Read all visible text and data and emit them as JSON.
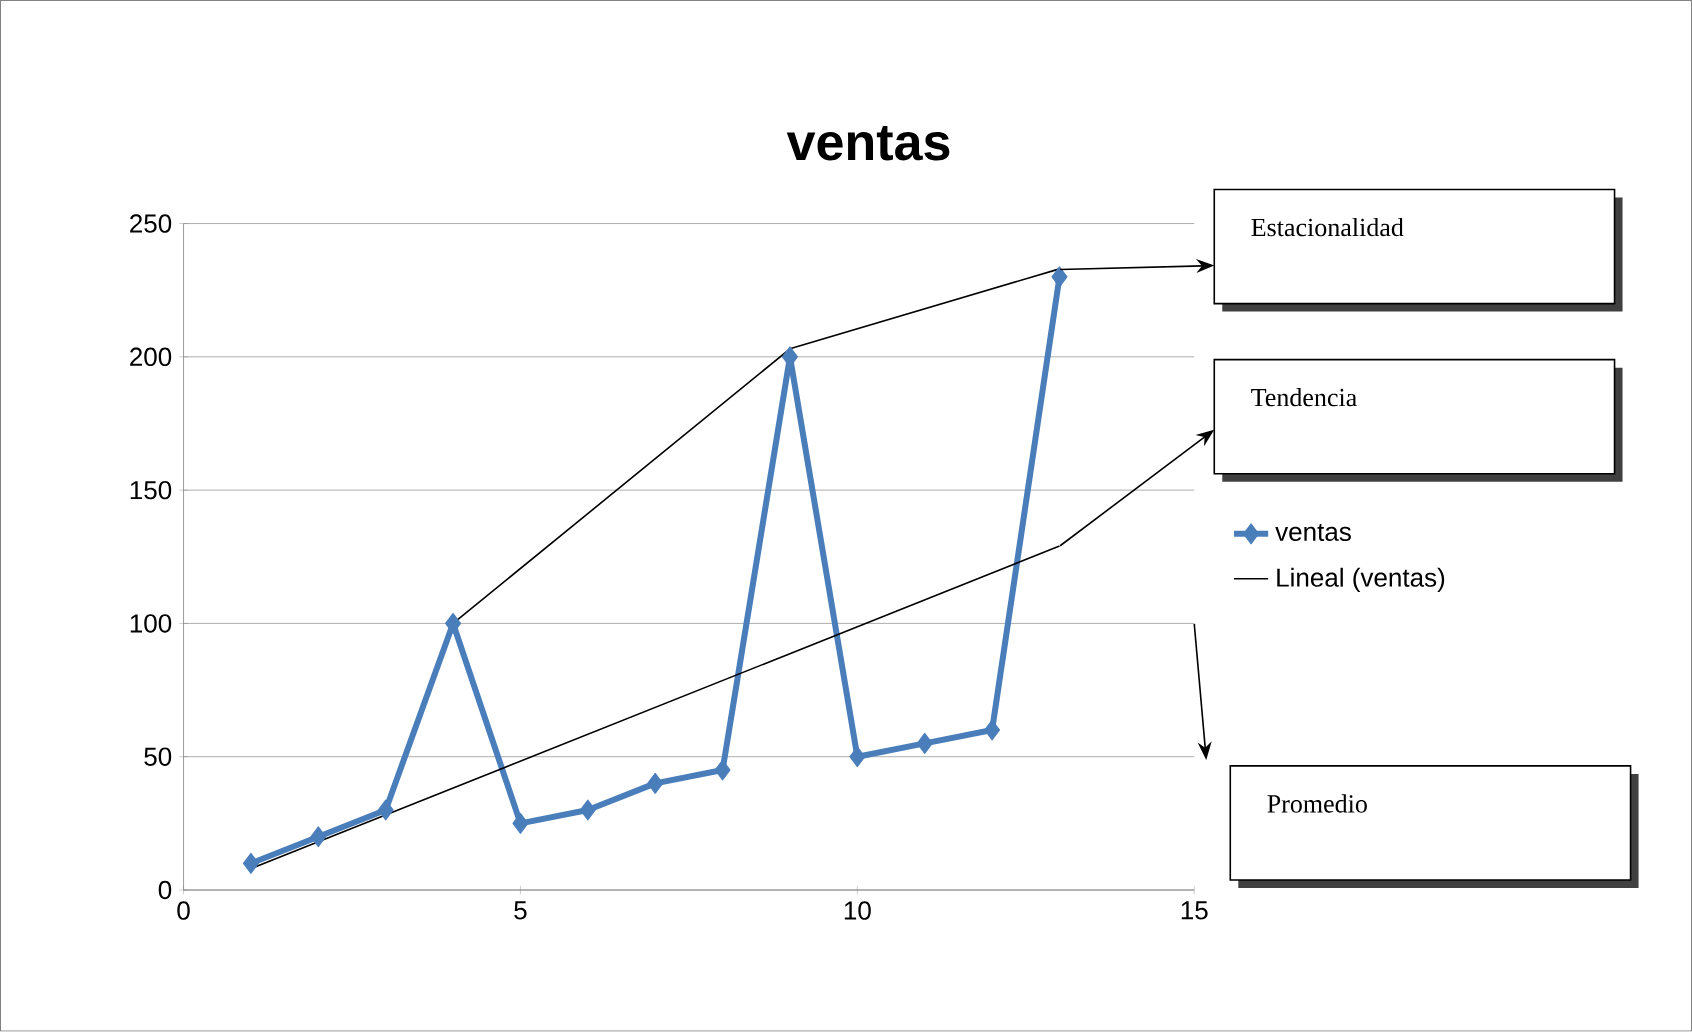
{
  "chart_data": {
    "type": "line",
    "title": "ventas",
    "xlim": [
      0,
      15
    ],
    "xticks": [
      0,
      5,
      10,
      15
    ],
    "ylim": [
      0,
      250
    ],
    "yticks": [
      0,
      50,
      100,
      150,
      200,
      250
    ],
    "grid": "y",
    "legend": "right",
    "marker": "diamond",
    "series": [
      {
        "name": "ventas",
        "color": "#4a7ebb",
        "x": [
          1,
          2,
          3,
          4,
          5,
          6,
          7,
          8,
          9,
          10,
          11,
          12,
          13
        ],
        "values": [
          10,
          20,
          30,
          100,
          25,
          30,
          40,
          45,
          200,
          50,
          55,
          60,
          230
        ]
      },
      {
        "name": "Lineal (ventas)",
        "color": "#000000",
        "marker": "none",
        "x": [
          1,
          13
        ],
        "values": [
          8,
          129
        ]
      },
      {
        "color": "#000000",
        "marker": "none",
        "x": [
          4,
          9,
          13
        ],
        "values": [
          100,
          203,
          233
        ]
      }
    ],
    "annotations": [
      "Estacionalidad",
      "Tendencia",
      "Promedio"
    ]
  }
}
